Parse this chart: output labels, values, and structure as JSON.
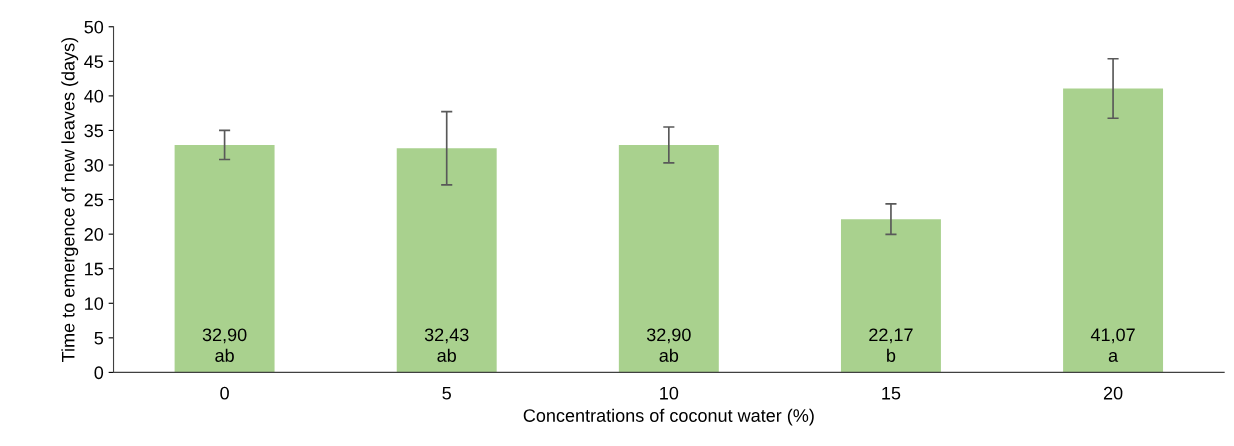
{
  "chart_data": {
    "type": "bar",
    "xlabel": "Concentrations of coconut water (%)",
    "ylabel": "Time to emergence of new leaves (days)",
    "categories": [
      "0",
      "5",
      "10",
      "15",
      "20"
    ],
    "values": [
      32.9,
      32.43,
      32.9,
      22.17,
      41.07
    ],
    "errors": [
      2.1,
      5.3,
      2.6,
      2.2,
      4.3
    ],
    "value_labels": [
      "32,90\nab",
      "32,43\nab",
      "32,90\nab",
      "22,17\nb",
      "41,07\na"
    ],
    "color": "#a9d18e",
    "ylim": [
      0,
      50
    ],
    "yticks": [
      0,
      5,
      10,
      15,
      20,
      25,
      30,
      35,
      40,
      45,
      50
    ],
    "grid": false,
    "legend": false
  }
}
